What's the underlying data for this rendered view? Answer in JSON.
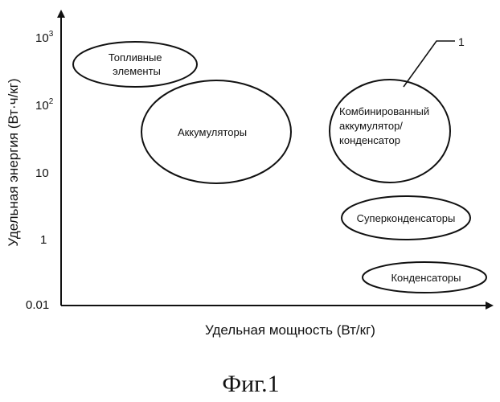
{
  "axes": {
    "y_title": "Удельная энергия (Вт·ч/кг)",
    "x_title": "Удельная мощность (Вт/кг)",
    "y_ticks": [
      {
        "base": "10",
        "exp": "3"
      },
      {
        "base": "10",
        "exp": "2"
      },
      {
        "base": "10",
        "exp": ""
      },
      {
        "base": "1",
        "exp": ""
      },
      {
        "base": "0.01",
        "exp": ""
      }
    ]
  },
  "regions": {
    "fuel_cells": [
      "Топливные",
      "элементы"
    ],
    "batteries": [
      "Аккумуляторы"
    ],
    "combined": [
      "Комбинированный",
      "аккумулятор/",
      "конденсатор"
    ],
    "supercapacitors": [
      "Суперконденсаторы"
    ],
    "capacitors": [
      "Конденсаторы"
    ]
  },
  "callout": "1",
  "caption": "Фиг.1"
}
